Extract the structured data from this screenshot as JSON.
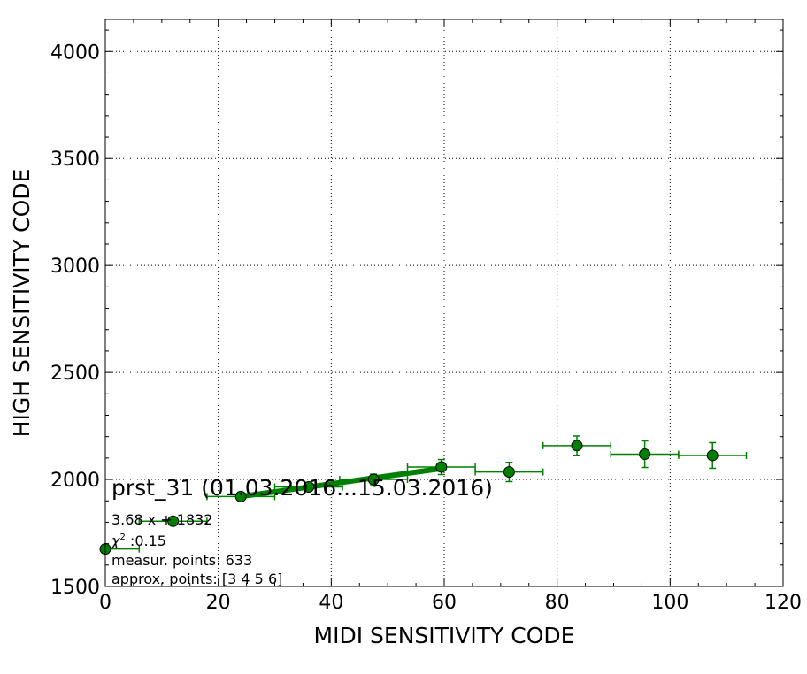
{
  "chart_data": {
    "type": "scatter",
    "xlabel": "MIDI SENSITIVITY CODE",
    "ylabel": "HIGH SENSITIVITY CODE",
    "xlim": [
      0,
      120
    ],
    "ylim": [
      1500,
      4150
    ],
    "x_ticks": [
      "0",
      "20",
      "40",
      "60",
      "80",
      "100",
      "120"
    ],
    "y_ticks": [
      "1500",
      "2000",
      "2500",
      "3000",
      "3500",
      "4000"
    ],
    "grid": true,
    "marker_color": "#008000",
    "line_color": "#008000",
    "points": [
      {
        "x": 0,
        "y": 1675,
        "xerr": 6,
        "yerr": 0
      },
      {
        "x": 12,
        "y": 1805,
        "xerr": 6,
        "yerr": 0
      },
      {
        "x": 24,
        "y": 1920,
        "xerr": 6,
        "yerr": 0
      },
      {
        "x": 36,
        "y": 1965,
        "xerr": 6,
        "yerr": 0
      },
      {
        "x": 47.5,
        "y": 2000,
        "xerr": 6,
        "yerr": 25
      },
      {
        "x": 59.5,
        "y": 2058,
        "xerr": 6,
        "yerr": 35
      },
      {
        "x": 71.5,
        "y": 2035,
        "xerr": 6,
        "yerr": 45
      },
      {
        "x": 83.5,
        "y": 2158,
        "xerr": 6,
        "yerr": 45
      },
      {
        "x": 95.5,
        "y": 2118,
        "xerr": 6,
        "yerr": 62
      },
      {
        "x": 107.5,
        "y": 2112,
        "xerr": 6,
        "yerr": 60
      }
    ],
    "fit": {
      "slope": 3.68,
      "intercept": 1832,
      "x_start": 24,
      "x_end": 59.5
    },
    "annotations": {
      "title": "prst_31 (01.03.2016...15.03.2016)",
      "equation": "3.68 x + 1832",
      "chi2_symbol": "χ",
      "chi2_sup": "2",
      "chi2_value": " :0.15",
      "measur_points": "measur. points: 633",
      "approx_points": "approx. points: [3 4 5 6]"
    }
  }
}
